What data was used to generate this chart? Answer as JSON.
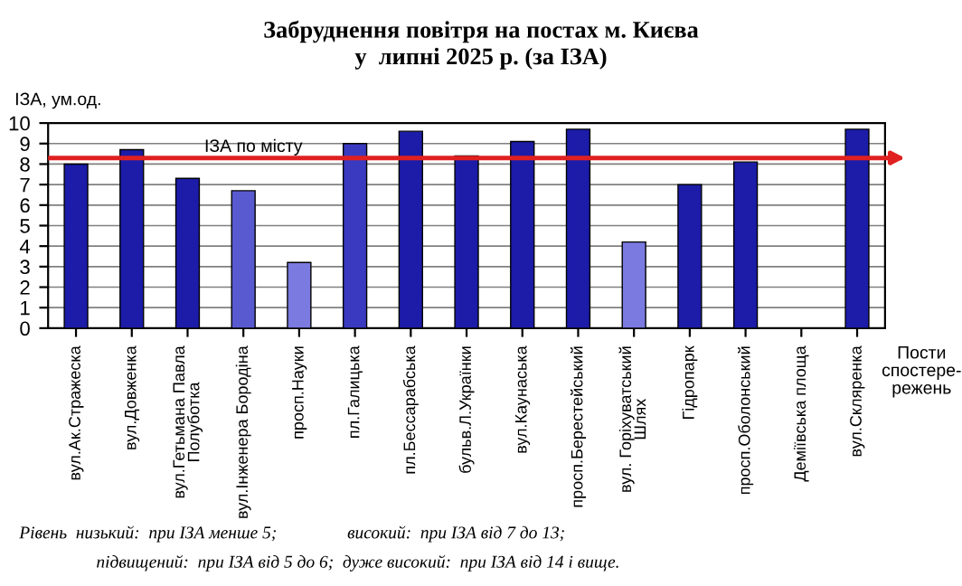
{
  "chart_data": {
    "type": "bar",
    "title": "Забруднення повітря на постах м. Києва\nу  липні 2025 р. (за ІЗА)",
    "ylabel": "ІЗА, ум.од.",
    "xlabel": "Пости\nспостере-\nрежень",
    "categories": [
      "вул.Ак.Стражеска",
      "вул.Довженка",
      "вул.Гетьмана Павла\nПолуботка",
      "вул.Інженера Бородіна",
      "просп.Науки",
      "пл.Галицька",
      "пл.Бессарабська",
      "бульв.Л.Українки",
      "вул.Каунаська",
      "просп.Берестейський",
      "вул. Горіхуватський\nШлях",
      "Гідропарк",
      "просп.Оболонський",
      "Деміївська площа",
      "вул.Скляренка"
    ],
    "values": [
      8.0,
      8.7,
      7.3,
      6.7,
      3.2,
      9.0,
      9.6,
      8.4,
      9.1,
      9.7,
      4.2,
      7.0,
      8.1,
      null,
      9.7
    ],
    "colors": [
      "#1c1ca8",
      "#1c1ca8",
      "#1c1ca8",
      "#5a5ad0",
      "#7a7ae0",
      "#3a3ac0",
      "#1c1ca8",
      "#1c1ca8",
      "#1c1ca8",
      "#1c1ca8",
      "#7a7ae0",
      "#1c1ca8",
      "#1c1ca8",
      "#1c1ca8",
      "#1c1ca8"
    ],
    "ylim": [
      0,
      10
    ],
    "yticks": [
      0,
      1,
      2,
      3,
      4,
      5,
      6,
      7,
      8,
      9,
      10
    ],
    "grid": "y",
    "ref_lines": [
      {
        "axis": "y",
        "value": 8.3,
        "label": "ІЗА по місту",
        "color": "#e02020",
        "line_style": "solid"
      }
    ],
    "annotations": [
      "Рівень  низький:  при ІЗА менше 5;                високий:  при ІЗА від 7 до 13;",
      "підвищений:  при ІЗА від 5 до 6;  дуже високий:  при ІЗА від 14 і вище."
    ]
  }
}
